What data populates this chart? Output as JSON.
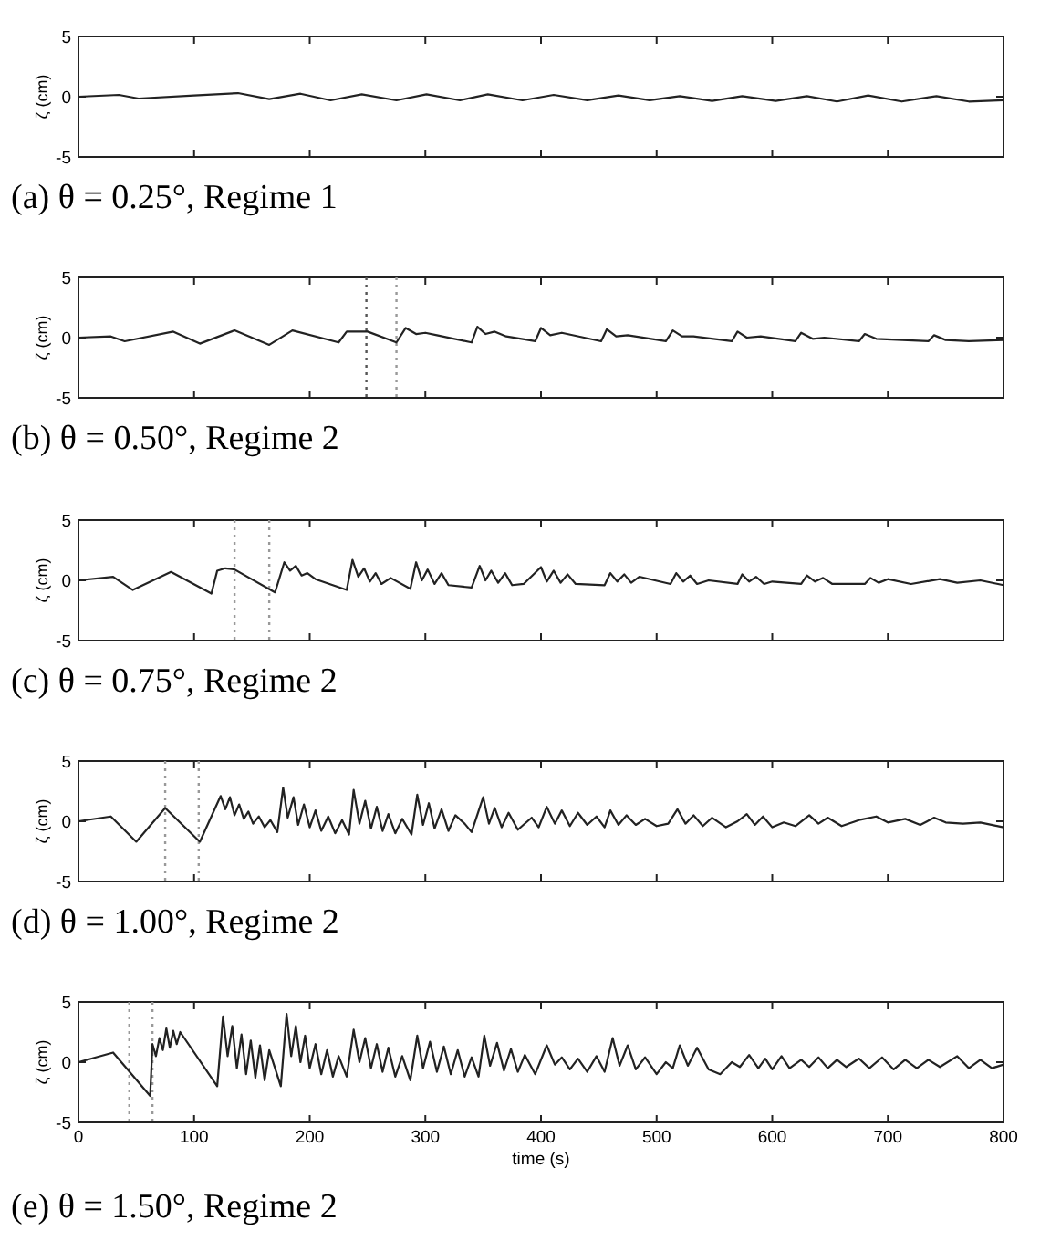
{
  "chart_data": [
    {
      "type": "line",
      "title": "(a) θ = 0.25°, Regime 1",
      "ylabel": "ζ (cm)",
      "xlim": [
        0,
        800
      ],
      "xticks": [
        0,
        100,
        200,
        300,
        400,
        500,
        600,
        700,
        800
      ],
      "ylim": [
        -5,
        5
      ],
      "yticks": [
        -5,
        0,
        5
      ],
      "tick_labels": "y",
      "series": [
        {
          "color": "#222222",
          "x": [
            0,
            35,
            52,
            100,
            138,
            165,
            192,
            218,
            245,
            275,
            301,
            330,
            354,
            384,
            411,
            440,
            467,
            494,
            520,
            548,
            574,
            603,
            630,
            656,
            683,
            712,
            742,
            770,
            800
          ],
          "values": [
            0,
            0.15,
            -0.15,
            0.1,
            0.3,
            -0.2,
            0.25,
            -0.3,
            0.2,
            -0.3,
            0.2,
            -0.3,
            0.2,
            -0.3,
            0.15,
            -0.3,
            0.1,
            -0.3,
            0.05,
            -0.35,
            0.05,
            -0.35,
            0.05,
            -0.4,
            0.1,
            -0.4,
            0.05,
            -0.4,
            -0.3
          ]
        }
      ]
    },
    {
      "type": "line",
      "title": "(b) θ = 0.50°, Regime 2",
      "ylabel": "ζ (cm)",
      "xlim": [
        0,
        800
      ],
      "xticks": [
        0,
        100,
        200,
        300,
        400,
        500,
        600,
        700,
        800
      ],
      "ylim": [
        -5,
        5
      ],
      "yticks": [
        -5,
        0,
        5
      ],
      "tick_labels": "y",
      "ref_lines": [
        {
          "axis": "x",
          "value": 249,
          "color": "#555555",
          "line_style": "dotted"
        },
        {
          "axis": "x",
          "value": 275,
          "color": "#999999",
          "line_style": "dotted"
        }
      ],
      "series": [
        {
          "color": "#222222",
          "x": [
            0,
            28,
            40,
            82,
            105,
            135,
            165,
            185,
            225,
            232,
            250,
            275,
            283,
            292,
            300,
            310,
            340,
            345,
            352,
            360,
            370,
            395,
            400,
            408,
            418,
            452,
            457,
            465,
            475,
            508,
            514,
            522,
            532,
            565,
            570,
            578,
            590,
            620,
            625,
            635,
            645,
            675,
            680,
            690,
            735,
            740,
            750,
            770,
            800
          ],
          "values": [
            0,
            0.1,
            -0.3,
            0.5,
            -0.5,
            0.6,
            -0.6,
            0.6,
            -0.4,
            0.5,
            0.5,
            -0.4,
            0.8,
            0.3,
            0.4,
            0.2,
            -0.4,
            0.9,
            0.3,
            0.5,
            0.1,
            -0.3,
            0.8,
            0.2,
            0.4,
            -0.3,
            0.7,
            0.1,
            0.2,
            -0.3,
            0.6,
            0.1,
            0.1,
            -0.3,
            0.5,
            0.0,
            0.1,
            -0.3,
            0.4,
            -0.1,
            0.0,
            -0.3,
            0.3,
            -0.1,
            -0.3,
            0.2,
            -0.2,
            -0.3,
            -0.2
          ]
        }
      ]
    },
    {
      "type": "line",
      "title": "(c) θ = 0.75°, Regime 2",
      "ylabel": "ζ (cm)",
      "xlim": [
        0,
        800
      ],
      "xticks": [
        0,
        100,
        200,
        300,
        400,
        500,
        600,
        700,
        800
      ],
      "ylim": [
        -5,
        5
      ],
      "yticks": [
        -5,
        0,
        5
      ],
      "tick_labels": "y",
      "ref_lines": [
        {
          "axis": "x",
          "value": 135,
          "color": "#999999",
          "line_style": "dotted"
        },
        {
          "axis": "x",
          "value": 165,
          "color": "#999999",
          "line_style": "dotted"
        }
      ],
      "series": [
        {
          "color": "#222222",
          "x": [
            0,
            30,
            47,
            80,
            115,
            120,
            127,
            135,
            170,
            178,
            183,
            188,
            193,
            198,
            205,
            232,
            237,
            242,
            247,
            252,
            257,
            262,
            270,
            287,
            292,
            297,
            302,
            308,
            314,
            320,
            340,
            347,
            352,
            357,
            363,
            369,
            375,
            385,
            400,
            405,
            411,
            417,
            423,
            430,
            455,
            460,
            466,
            472,
            478,
            485,
            512,
            517,
            523,
            529,
            535,
            545,
            570,
            574,
            580,
            586,
            593,
            600,
            625,
            630,
            637,
            644,
            652,
            680,
            685,
            692,
            700,
            720,
            745,
            760,
            780,
            800
          ],
          "values": [
            0,
            0.3,
            -0.8,
            0.7,
            -1.1,
            0.8,
            1.0,
            0.9,
            -1.0,
            1.5,
            0.8,
            1.2,
            0.4,
            0.6,
            0.1,
            -0.8,
            1.7,
            0.3,
            1.0,
            -0.1,
            0.6,
            -0.3,
            0.2,
            -0.7,
            1.5,
            0.0,
            0.9,
            -0.3,
            0.6,
            -0.4,
            -0.6,
            1.2,
            0.0,
            0.8,
            -0.2,
            0.6,
            -0.4,
            -0.3,
            1.1,
            -0.1,
            0.8,
            -0.2,
            0.5,
            -0.3,
            -0.4,
            0.6,
            -0.1,
            0.5,
            -0.2,
            0.3,
            -0.3,
            0.6,
            -0.1,
            0.4,
            -0.3,
            0.0,
            -0.3,
            0.5,
            -0.1,
            0.3,
            -0.3,
            -0.1,
            -0.3,
            0.4,
            -0.1,
            0.2,
            -0.3,
            -0.3,
            0.2,
            -0.2,
            0.1,
            -0.3,
            0.1,
            -0.2,
            0.0,
            -0.4
          ]
        }
      ]
    },
    {
      "type": "line",
      "title": "(d) θ = 1.00°, Regime 2",
      "ylabel": "ζ (cm)",
      "xlim": [
        0,
        800
      ],
      "xticks": [
        0,
        100,
        200,
        300,
        400,
        500,
        600,
        700,
        800
      ],
      "ylim": [
        -5,
        5
      ],
      "yticks": [
        -5,
        0,
        5
      ],
      "tick_labels": "y",
      "ref_lines": [
        {
          "axis": "x",
          "value": 75,
          "color": "#999999",
          "line_style": "dotted"
        },
        {
          "axis": "x",
          "value": 104,
          "color": "#999999",
          "line_style": "dotted"
        }
      ],
      "series": [
        {
          "color": "#222222",
          "x": [
            0,
            28,
            50,
            75,
            105,
            123,
            127,
            131,
            135,
            139,
            143,
            147,
            151,
            156,
            161,
            166,
            172,
            177,
            181,
            186,
            190,
            195,
            200,
            205,
            210,
            216,
            222,
            228,
            234,
            238,
            243,
            248,
            253,
            258,
            263,
            268,
            274,
            280,
            288,
            293,
            298,
            303,
            308,
            314,
            320,
            326,
            334,
            340,
            350,
            355,
            360,
            366,
            372,
            380,
            392,
            398,
            405,
            412,
            418,
            425,
            432,
            440,
            448,
            455,
            460,
            467,
            474,
            482,
            490,
            500,
            510,
            518,
            525,
            532,
            540,
            548,
            560,
            570,
            578,
            585,
            592,
            600,
            610,
            620,
            632,
            640,
            648,
            660,
            675,
            690,
            700,
            715,
            728,
            740,
            750,
            765,
            780,
            800
          ],
          "values": [
            0,
            0.4,
            -1.7,
            1.1,
            -1.7,
            2.1,
            1.0,
            2.0,
            0.5,
            1.4,
            0.2,
            0.8,
            -0.2,
            0.4,
            -0.5,
            0.1,
            -0.9,
            2.8,
            0.3,
            2.0,
            -0.3,
            1.4,
            -0.5,
            0.9,
            -0.8,
            0.4,
            -1.0,
            0.1,
            -1.1,
            2.6,
            -0.2,
            1.7,
            -0.6,
            1.2,
            -0.8,
            0.6,
            -1.0,
            0.2,
            -1.1,
            2.2,
            -0.3,
            1.5,
            -0.6,
            1.0,
            -0.8,
            0.5,
            -0.2,
            -0.9,
            2.0,
            -0.2,
            1.1,
            -0.5,
            0.7,
            -0.7,
            0.3,
            -0.5,
            1.2,
            -0.2,
            0.9,
            -0.4,
            0.7,
            -0.3,
            0.4,
            -0.5,
            0.9,
            -0.3,
            0.5,
            -0.3,
            0.2,
            -0.4,
            -0.2,
            1.0,
            -0.2,
            0.5,
            -0.4,
            0.3,
            -0.5,
            0.0,
            0.6,
            -0.3,
            0.4,
            -0.5,
            -0.1,
            -0.4,
            0.5,
            -0.2,
            0.3,
            -0.4,
            0.1,
            0.4,
            -0.1,
            0.2,
            -0.3,
            0.3,
            -0.1,
            -0.2,
            -0.1,
            -0.5
          ]
        }
      ]
    },
    {
      "type": "line",
      "title": "(e) θ = 1.50°, Regime 2",
      "xlabel": "time (s)",
      "ylabel": "ζ (cm)",
      "xlim": [
        0,
        800
      ],
      "xticks": [
        0,
        100,
        200,
        300,
        400,
        500,
        600,
        700,
        800
      ],
      "ylim": [
        -5,
        5
      ],
      "yticks": [
        -5,
        0,
        5
      ],
      "ref_lines": [
        {
          "axis": "x",
          "value": 44,
          "color": "#999999",
          "line_style": "dotted"
        },
        {
          "axis": "x",
          "value": 64,
          "color": "#999999",
          "line_style": "dotted"
        }
      ],
      "series": [
        {
          "color": "#222222",
          "x": [
            0,
            30,
            62,
            64,
            67,
            70,
            73,
            76,
            79,
            82,
            85,
            88,
            120,
            125,
            129,
            133,
            137,
            141,
            145,
            149,
            153,
            157,
            161,
            165,
            175,
            180,
            184,
            188,
            192,
            196,
            200,
            205,
            210,
            215,
            220,
            225,
            232,
            238,
            243,
            248,
            253,
            258,
            263,
            268,
            274,
            280,
            287,
            293,
            298,
            304,
            310,
            316,
            322,
            328,
            334,
            340,
            346,
            351,
            356,
            362,
            368,
            374,
            380,
            386,
            395,
            405,
            412,
            418,
            425,
            432,
            440,
            448,
            455,
            462,
            468,
            475,
            482,
            490,
            500,
            508,
            514,
            520,
            527,
            535,
            545,
            555,
            565,
            572,
            580,
            588,
            594,
            600,
            608,
            615,
            625,
            632,
            640,
            648,
            656,
            664,
            675,
            684,
            695,
            705,
            715,
            725,
            735,
            745,
            760,
            770,
            780,
            790,
            800
          ],
          "values": [
            0,
            0.8,
            -2.8,
            1.5,
            0.5,
            2.0,
            1.0,
            2.8,
            1.2,
            2.6,
            1.5,
            2.5,
            -2.0,
            3.8,
            0.5,
            3.0,
            -0.5,
            2.3,
            -1.0,
            1.8,
            -1.3,
            1.4,
            -1.5,
            1.0,
            -2.0,
            4.0,
            0.5,
            3.0,
            0.0,
            2.2,
            -0.5,
            1.5,
            -1.0,
            1.0,
            -1.2,
            0.5,
            -1.2,
            2.7,
            0.0,
            2.0,
            -0.5,
            1.5,
            -0.8,
            1.2,
            -1.2,
            0.5,
            -1.5,
            2.2,
            -0.5,
            1.7,
            -0.8,
            1.3,
            -1.0,
            1.0,
            -1.2,
            0.4,
            -1.2,
            2.2,
            -0.3,
            1.6,
            -0.7,
            1.1,
            -0.8,
            0.6,
            -1.0,
            1.4,
            -0.2,
            0.4,
            -0.6,
            0.3,
            -0.8,
            0.5,
            -0.8,
            2.0,
            -0.3,
            1.4,
            -0.6,
            0.4,
            -1.0,
            0.0,
            -0.5,
            1.4,
            -0.3,
            1.2,
            -0.6,
            -1.0,
            0.0,
            -0.4,
            0.6,
            -0.5,
            0.3,
            -0.6,
            0.5,
            -0.5,
            0.2,
            -0.4,
            0.4,
            -0.5,
            0.2,
            -0.4,
            0.3,
            -0.5,
            0.4,
            -0.6,
            0.2,
            -0.5,
            0.2,
            -0.4,
            0.5,
            -0.5,
            0.2,
            -0.5,
            -0.2
          ]
        }
      ]
    }
  ]
}
